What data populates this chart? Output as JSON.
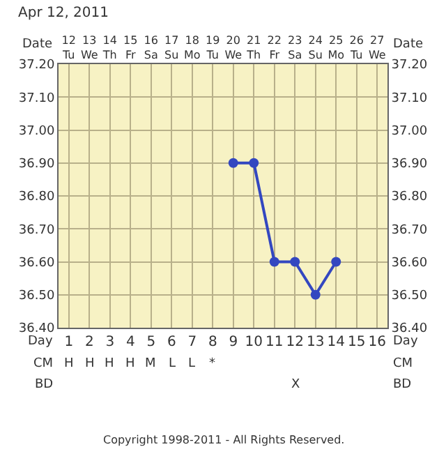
{
  "chart_data": {
    "type": "line",
    "title": "Apr 12, 2011",
    "xlabel": "Day",
    "x2label": "Date",
    "x": [
      9,
      10,
      11,
      12,
      13,
      14
    ],
    "series": [
      {
        "color": "#3347c0",
        "values": [
          36.9,
          36.9,
          36.6,
          36.6,
          36.5,
          36.6
        ]
      }
    ],
    "xlim": [
      0.5,
      16.5
    ],
    "xticks": [
      1,
      2,
      3,
      4,
      5,
      6,
      7,
      8,
      9,
      10,
      11,
      12,
      13,
      14,
      15,
      16
    ],
    "x2lim": [
      "2011-04-11T12:00",
      "2011-04-27T12:00"
    ],
    "x2ticks": [
      {
        "value": "2011-04-12",
        "label": "12\nTu"
      },
      {
        "value": "2011-04-13",
        "label": "13\nWe"
      },
      {
        "value": "2011-04-14",
        "label": "14\nTh"
      },
      {
        "value": "2011-04-15",
        "label": "15\nFr"
      },
      {
        "value": "2011-04-16",
        "label": "16\nSa"
      },
      {
        "value": "2011-04-17",
        "label": "17\nSu"
      },
      {
        "value": "2011-04-18",
        "label": "18\nMo"
      },
      {
        "value": "2011-04-19",
        "label": "19\nTu"
      },
      {
        "value": "2011-04-20",
        "label": "20\nWe"
      },
      {
        "value": "2011-04-21",
        "label": "21\nTh"
      },
      {
        "value": "2011-04-22",
        "label": "22\nFr"
      },
      {
        "value": "2011-04-23",
        "label": "23\nSa"
      },
      {
        "value": "2011-04-24",
        "label": "24\nSu"
      },
      {
        "value": "2011-04-25",
        "label": "25\nMo"
      },
      {
        "value": "2011-04-26",
        "label": "26\nTu"
      },
      {
        "value": "2011-04-27",
        "label": "27\nWe"
      }
    ],
    "ylim": [
      36.4,
      37.2
    ],
    "yticks": [
      {
        "value": 36.4,
        "label": "36.40"
      },
      {
        "value": 36.5,
        "label": "36.50"
      },
      {
        "value": 36.6,
        "label": "36.60"
      },
      {
        "value": 36.7,
        "label": "36.70"
      },
      {
        "value": 36.8,
        "label": "36.80"
      },
      {
        "value": 36.9,
        "label": "36.90"
      },
      {
        "value": 37.0,
        "label": "37.00"
      },
      {
        "value": 37.1,
        "label": "37.10"
      },
      {
        "value": 37.2,
        "label": "37.20"
      }
    ],
    "y2lim": [
      36.4,
      37.2
    ],
    "y2ticks": [
      {
        "value": 36.4,
        "label": "36.40"
      },
      {
        "value": 36.5,
        "label": "36.50"
      },
      {
        "value": 36.6,
        "label": "36.60"
      },
      {
        "value": 36.7,
        "label": "36.70"
      },
      {
        "value": 36.8,
        "label": "36.80"
      },
      {
        "value": 36.9,
        "label": "36.90"
      },
      {
        "value": 37.0,
        "label": "37.00"
      },
      {
        "value": 37.1,
        "label": "37.10"
      },
      {
        "value": 37.2,
        "label": "37.20"
      }
    ],
    "grid": true,
    "marker": "circle",
    "line_style": "solid",
    "annotations": [
      "CM",
      "H",
      "H",
      "H",
      "H",
      "M",
      "L",
      "L",
      "*",
      null,
      null,
      null,
      null,
      null,
      null,
      null,
      null,
      "BD",
      null,
      null,
      null,
      null,
      null,
      null,
      null,
      null,
      null,
      null,
      null,
      "X",
      null,
      null,
      null,
      null,
      "Copyright 1998-2011 - All Rights Reserved."
    ]
  }
}
